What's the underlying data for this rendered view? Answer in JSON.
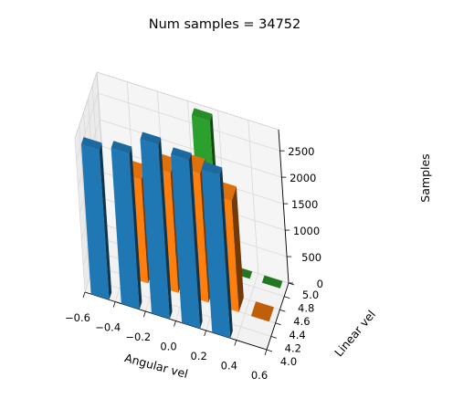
{
  "chart_data": {
    "type": "bar3d",
    "title": "Num samples = 34752",
    "xlabel": "Angular vel",
    "ylabel": "Linear vel",
    "zlabel": "Samples",
    "xlim": [
      -0.6,
      0.6
    ],
    "ylim": [
      4.0,
      5.0
    ],
    "zlim": [
      0,
      2900
    ],
    "x_ticks": [
      "−0.6",
      "−0.4",
      "−0.2",
      "0.0",
      "0.2",
      "0.4",
      "0.6"
    ],
    "y_ticks": [
      "4.0",
      "4.2",
      "4.4",
      "4.6",
      "4.8",
      "5.0"
    ],
    "z_ticks": [
      "0",
      "500",
      "1000",
      "1500",
      "2000",
      "2500"
    ],
    "grid": true,
    "series": [
      {
        "linear_vel": 4.0,
        "color": "#1f77b4",
        "bars": [
          {
            "angular_vel": -0.5,
            "value": 2830
          },
          {
            "angular_vel": -0.3,
            "value": 2940
          },
          {
            "angular_vel": -0.1,
            "value": 3290
          },
          {
            "angular_vel": 0.1,
            "value": 3180
          },
          {
            "angular_vel": 0.3,
            "value": 3090
          }
        ]
      },
      {
        "linear_vel": 4.5,
        "color": "#ff7f0e",
        "bars": [
          {
            "angular_vel": -0.3,
            "value": 1960
          },
          {
            "angular_vel": -0.1,
            "value": 2270
          },
          {
            "angular_vel": 0.1,
            "value": 2440
          },
          {
            "angular_vel": 0.3,
            "value": 2100
          },
          {
            "angular_vel": 0.5,
            "value": 0
          }
        ]
      },
      {
        "linear_vel": 5.0,
        "color": "#2ca02c",
        "bars": [
          {
            "angular_vel": -0.3,
            "value": 0
          },
          {
            "angular_vel": -0.1,
            "value": 0
          },
          {
            "angular_vel": 0.1,
            "value": 2800
          },
          {
            "angular_vel": 0.3,
            "value": 0
          },
          {
            "angular_vel": 0.5,
            "value": 0
          }
        ]
      }
    ]
  }
}
